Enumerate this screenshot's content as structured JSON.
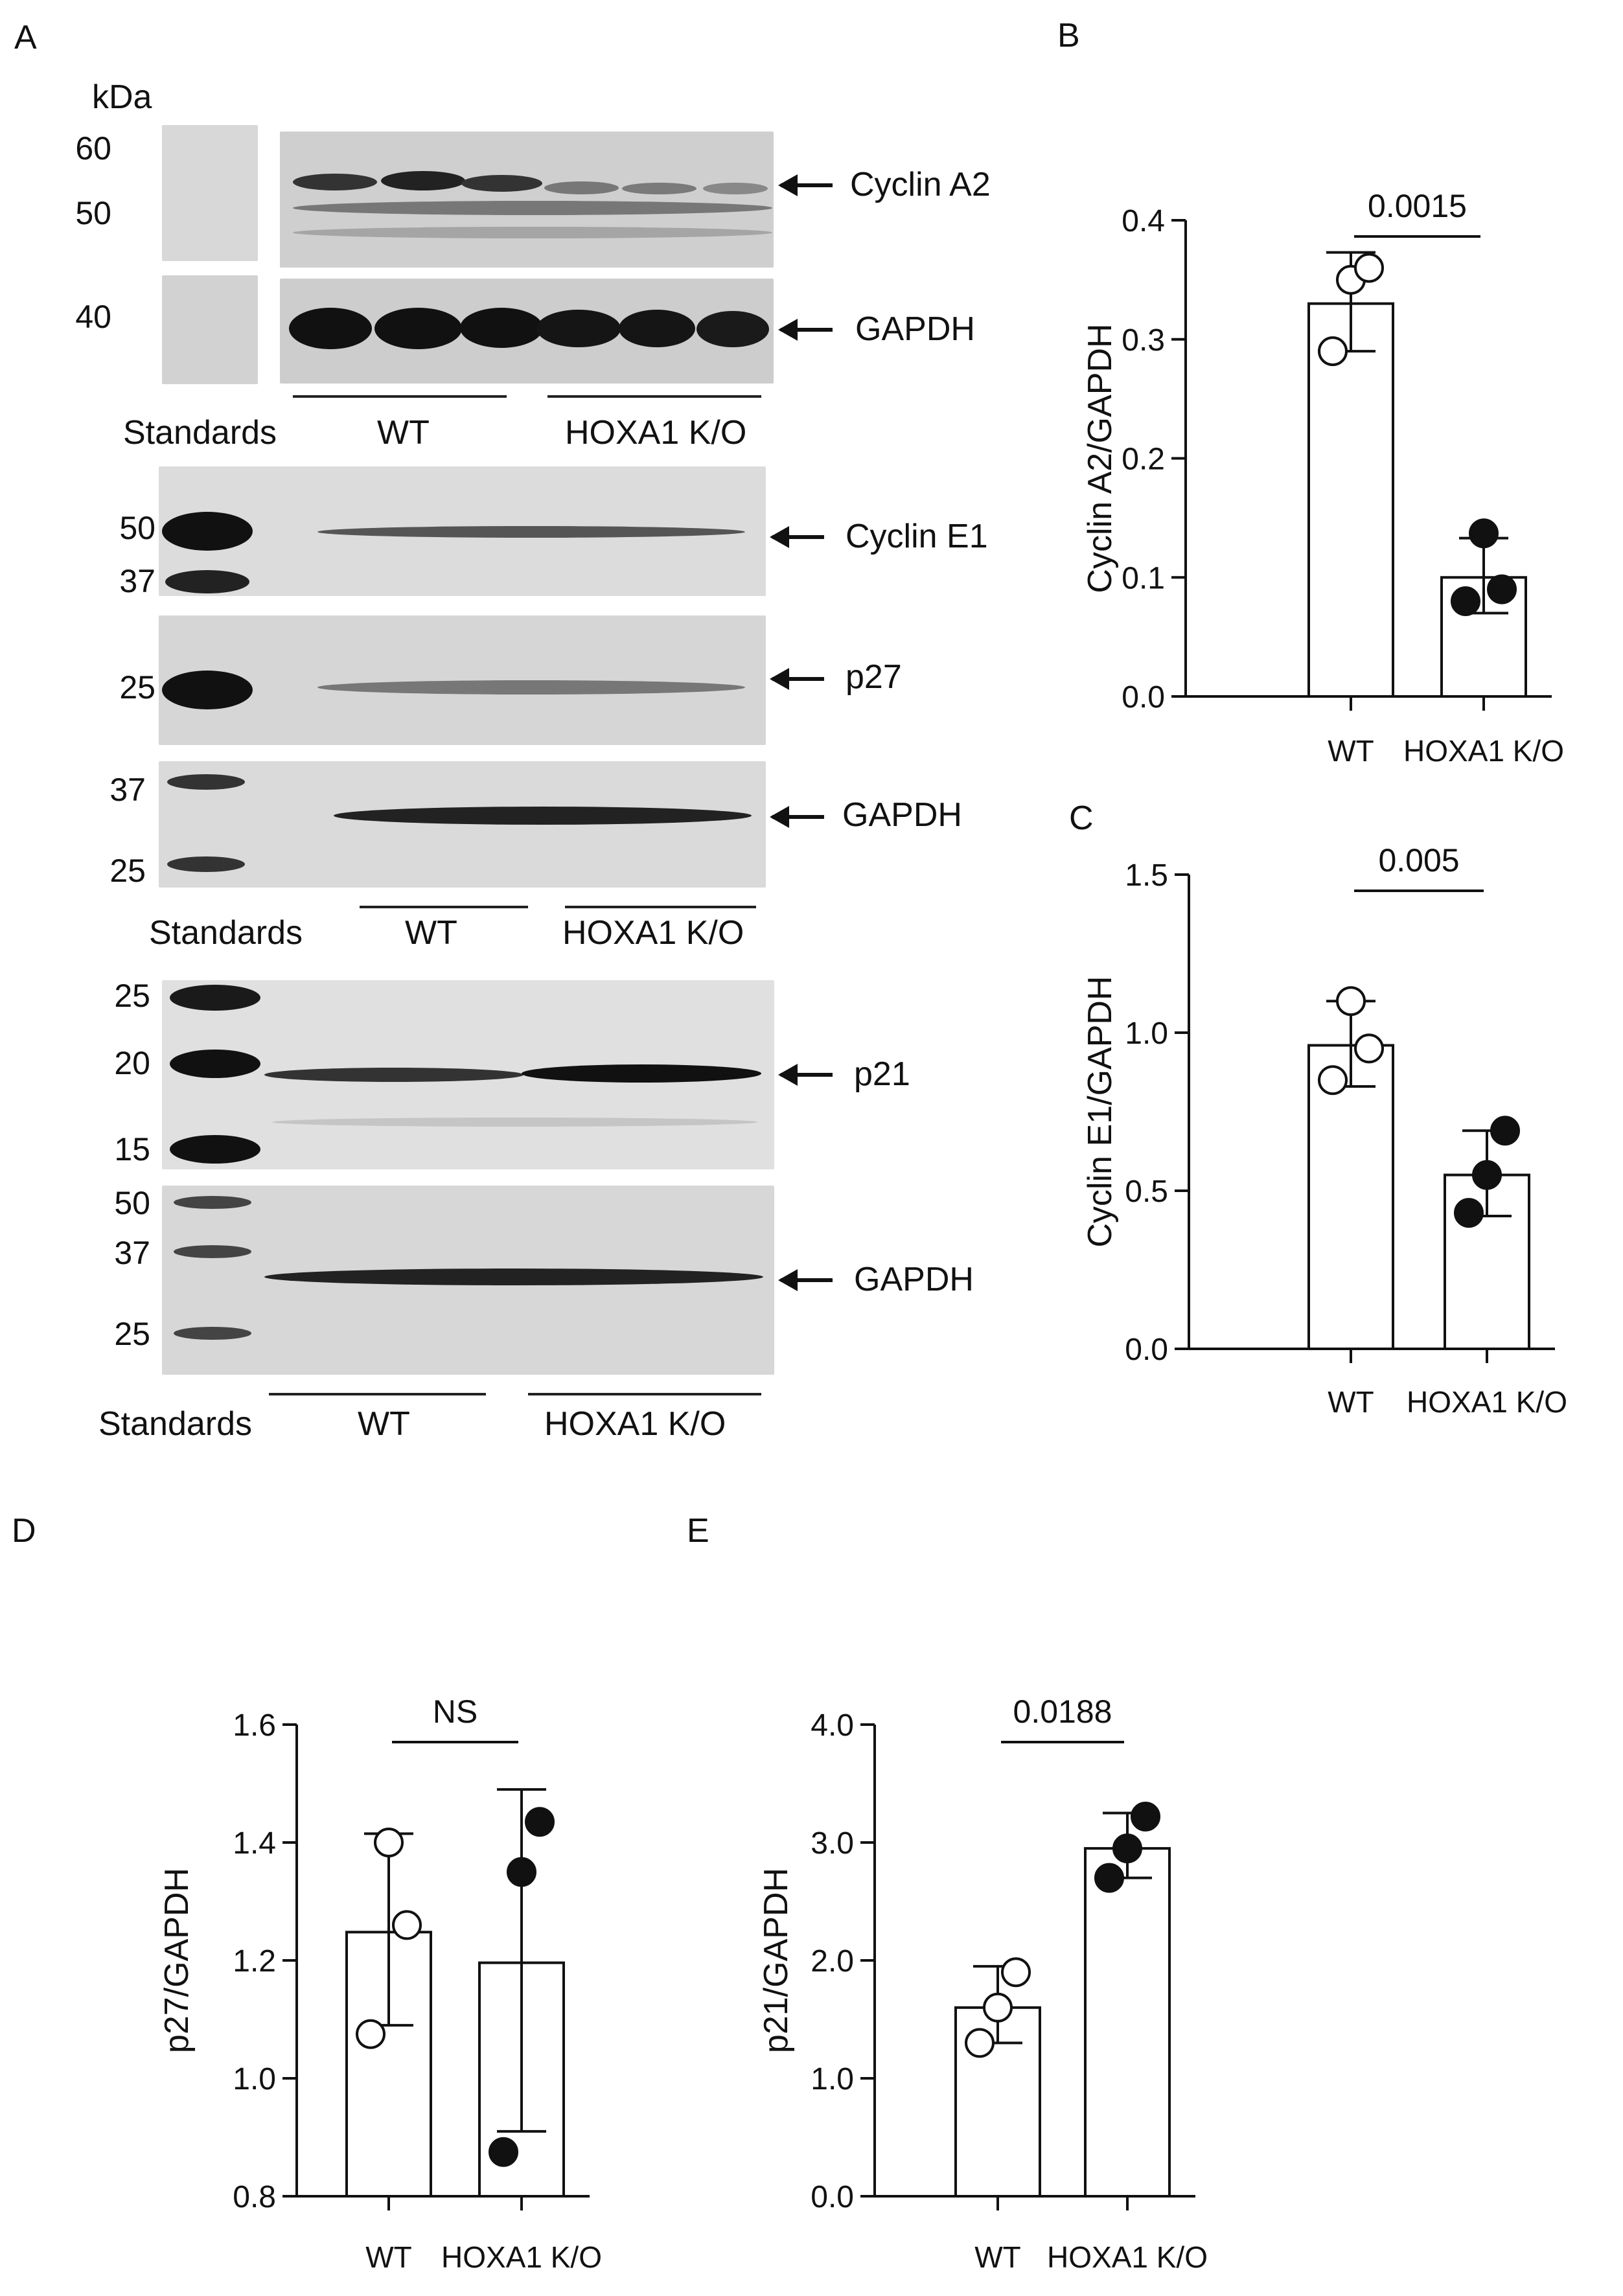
{
  "panel_a": {
    "letter": "A",
    "kda_label": "kDa",
    "blot1": {
      "mw_labels": [
        "60",
        "50",
        "40"
      ],
      "proteins": [
        "Cyclin A2",
        "GAPDH"
      ],
      "standards": "Standards",
      "wt": "WT",
      "ko": "HOXA1 K/O"
    },
    "blot2": {
      "mw_labels": [
        "50",
        "37",
        "25",
        "37",
        "25"
      ],
      "proteins": [
        "Cyclin E1",
        "p27",
        "GAPDH"
      ],
      "standards": "Standards",
      "wt": "WT",
      "ko": "HOXA1 K/O"
    },
    "blot3": {
      "mw_labels": [
        "25",
        "20",
        "15",
        "50",
        "37",
        "25"
      ],
      "proteins": [
        "p21",
        "GAPDH"
      ],
      "standards": "Standards",
      "wt": "WT",
      "ko": "HOXA1 K/O"
    }
  },
  "chart_data": [
    {
      "panel": "B",
      "type": "bar",
      "categories": [
        "WT",
        "HOXA1 K/O"
      ],
      "values": [
        0.33,
        0.1
      ],
      "error_bars": [
        [
          0.29,
          0.373
        ],
        [
          0.07,
          0.133
        ]
      ],
      "points": [
        [
          0.29,
          0.35,
          0.36
        ],
        [
          0.08,
          0.137,
          0.09
        ]
      ],
      "point_style": [
        "open",
        "filled"
      ],
      "ylabel": "Cyclin A2/GAPDH",
      "ylim": [
        0,
        0.4
      ],
      "yticks": [
        "0.0",
        "0.1",
        "0.2",
        "0.3",
        "0.4"
      ],
      "pvalue": "0.0015"
    },
    {
      "panel": "C",
      "type": "bar",
      "categories": [
        "WT",
        "HOXA1 K/O"
      ],
      "values": [
        0.96,
        0.55
      ],
      "error_bars": [
        [
          0.83,
          1.1
        ],
        [
          0.42,
          0.69
        ]
      ],
      "points": [
        [
          0.85,
          1.1,
          0.95
        ],
        [
          0.43,
          0.55,
          0.69
        ]
      ],
      "point_style": [
        "open",
        "filled"
      ],
      "ylabel": "Cyclin E1/GAPDH",
      "ylim": [
        0,
        1.5
      ],
      "yticks": [
        "0.0",
        "0.5",
        "1.0",
        "1.5"
      ],
      "pvalue": "0.005"
    },
    {
      "panel": "D",
      "type": "bar",
      "categories": [
        "WT",
        "HOXA1 K/O"
      ],
      "values": [
        1.248,
        1.196
      ],
      "error_bars": [
        [
          1.09,
          1.415
        ],
        [
          0.91,
          1.49
        ]
      ],
      "points": [
        [
          1.075,
          1.4,
          1.26
        ],
        [
          0.875,
          1.35,
          1.435
        ]
      ],
      "point_style": [
        "open",
        "filled"
      ],
      "ylabel": "p27/GAPDH",
      "ylim": [
        0.8,
        1.6
      ],
      "yticks": [
        "0.8",
        "1.0",
        "1.2",
        "1.4",
        "1.6"
      ],
      "pvalue": "NS"
    },
    {
      "panel": "E",
      "type": "bar",
      "categories": [
        "WT",
        "HOXA1 K/O"
      ],
      "values": [
        1.6,
        2.95
      ],
      "error_bars": [
        [
          1.3,
          1.95
        ],
        [
          2.7,
          3.25
        ]
      ],
      "points": [
        [
          1.3,
          1.6,
          1.9
        ],
        [
          2.7,
          2.95,
          3.22
        ]
      ],
      "point_style": [
        "open",
        "filled"
      ],
      "ylabel": "p21/GAPDH",
      "ylim": [
        0,
        4
      ],
      "yticks": [
        "0.0",
        "1.0",
        "2.0",
        "3.0",
        "4.0"
      ],
      "pvalue": "0.0188"
    }
  ]
}
